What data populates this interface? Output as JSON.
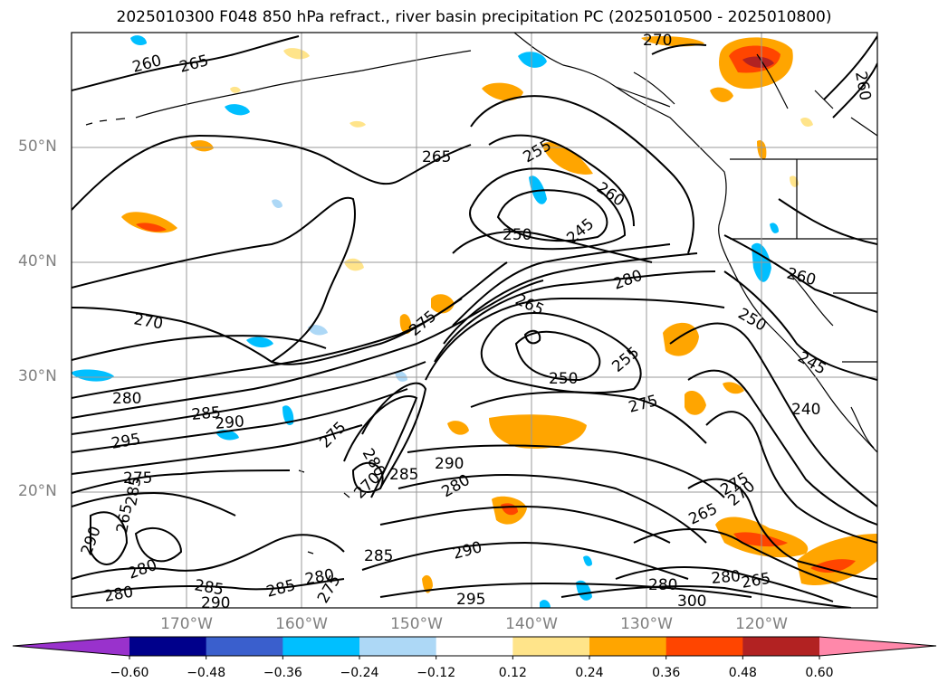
{
  "title": "2025010300 F048 850 hPa refract., river basin precipitation PC (2025010500 - 2025010800)",
  "map": {
    "lat_labels": [
      "50°N",
      "40°N",
      "30°N",
      "20°N"
    ],
    "lon_labels": [
      "170°W",
      "160°W",
      "150°W",
      "140°W",
      "130°W",
      "120°W"
    ],
    "contour_labels": [
      "260",
      "265",
      "270",
      "260",
      "265",
      "255",
      "260",
      "250",
      "245",
      "280",
      "265",
      "270",
      "275",
      "250",
      "255",
      "275",
      "280",
      "285",
      "290",
      "295",
      "275",
      "280",
      "275",
      "270",
      "285",
      "290",
      "280",
      "260",
      "250",
      "245",
      "240",
      "275",
      "270",
      "265",
      "290",
      "265",
      "285",
      "280",
      "285",
      "290",
      "275",
      "280",
      "300",
      "285",
      "265",
      "295",
      "280",
      "280",
      "285",
      "280",
      "290"
    ]
  },
  "colorbar": {
    "tick_labels": [
      "−0.60",
      "−0.48",
      "−0.36",
      "−0.24",
      "−0.12",
      "0.12",
      "0.24",
      "0.36",
      "0.48",
      "0.60"
    ],
    "colors": [
      "#9932cc",
      "#00008b",
      "#3a5fcd",
      "#00bfff",
      "#add8f6",
      "#ffffff",
      "#ffe48a",
      "#ffa500",
      "#ff4500",
      "#b22222",
      "#ff88aa",
      "#ff88aa"
    ]
  }
}
